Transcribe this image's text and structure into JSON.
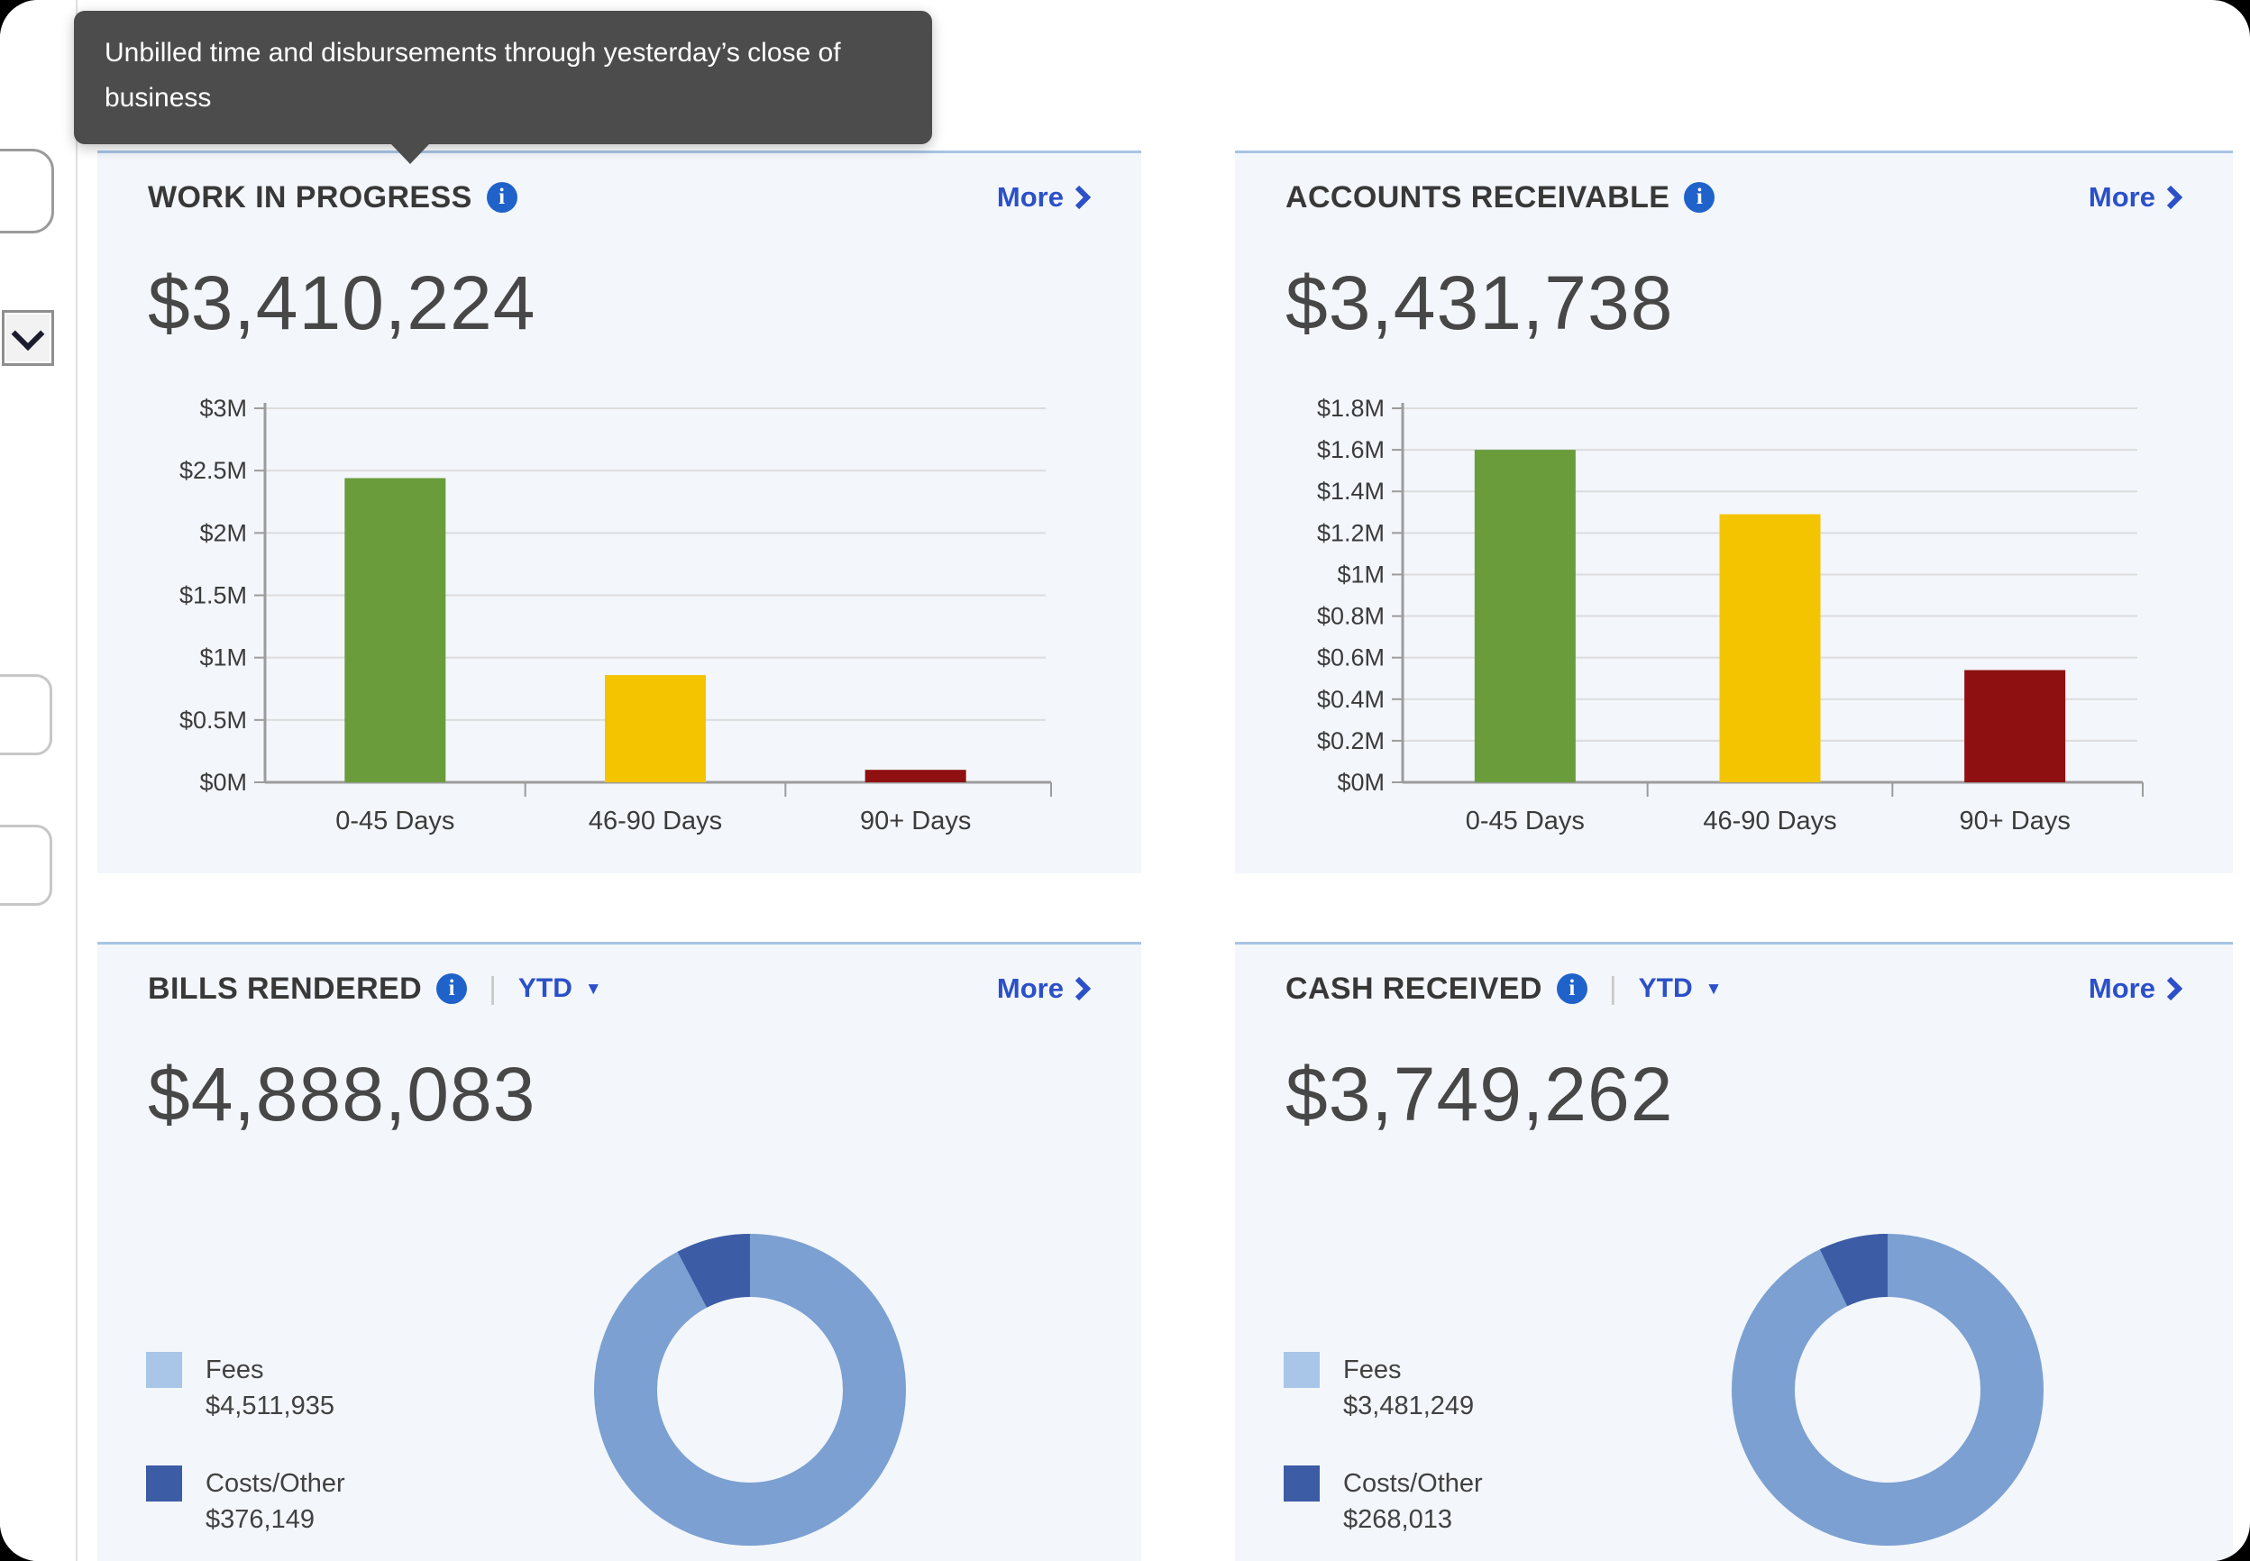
{
  "tooltip": {
    "text": "Unbilled time and disbursements through yesterday’s close of business"
  },
  "icons": {
    "info_glyph": "i",
    "period_caret_glyph": "▼",
    "more_chevron": "chevron-right",
    "sidebar_dropdown": "chevron-down"
  },
  "cards": {
    "work_in_progress": {
      "title": "WORK IN PROGRESS",
      "more_label": "More",
      "value": "$3,410,224"
    },
    "accounts_receivable": {
      "title": "ACCOUNTS RECEIVABLE",
      "more_label": "More",
      "value": "$3,431,738"
    },
    "bills_rendered": {
      "title": "BILLS RENDERED",
      "period_label": "YTD",
      "more_label": "More",
      "value": "$4,888,083"
    },
    "cash_received": {
      "title": "CASH RECEIVED",
      "period_label": "YTD",
      "more_label": "More",
      "value": "$3,749,262"
    }
  },
  "chart_data": [
    {
      "id": "work-in-progress-aging",
      "type": "bar",
      "title": "WORK IN PROGRESS",
      "categories": [
        "0-45 Days",
        "46-90 Days",
        "90+ Days"
      ],
      "values": [
        2.44,
        0.86,
        0.1
      ],
      "unit": "USD millions",
      "bar_colors": [
        "#6a9c3c",
        "#f5c400",
        "#8e1010"
      ],
      "ylim": [
        0,
        3
      ],
      "ytick_labels": [
        "$0M",
        "$0.5M",
        "$1M",
        "$1.5M",
        "$2M",
        "$2.5M",
        "$3M"
      ],
      "grid": true,
      "legend": "none"
    },
    {
      "id": "accounts-receivable-aging",
      "type": "bar",
      "title": "ACCOUNTS RECEIVABLE",
      "categories": [
        "0-45 Days",
        "46-90 Days",
        "90+ Days"
      ],
      "values": [
        1.6,
        1.29,
        0.54
      ],
      "unit": "USD millions",
      "bar_colors": [
        "#6a9c3c",
        "#f5c400",
        "#8e1010"
      ],
      "ylim": [
        0,
        1.8
      ],
      "ytick_labels": [
        "$0M",
        "$0.2M",
        "$0.4M",
        "$0.6M",
        "$0.8M",
        "$1M",
        "$1.2M",
        "$1.4M",
        "$1.6M",
        "$1.8M"
      ],
      "grid": true,
      "legend": "none"
    },
    {
      "id": "bills-rendered-split",
      "type": "donut",
      "title": "BILLS RENDERED YTD",
      "total_label": "$4,888,083",
      "legend_position": "left",
      "slices": [
        {
          "label": "Fees",
          "value": 4511935,
          "value_label": "$4,511,935",
          "color": "#7ba0d1",
          "legend_color": "#a9c6e8"
        },
        {
          "label": "Costs/Other",
          "value": 376149,
          "value_label": "$376,149",
          "color": "#3c5ca5",
          "legend_color": "#3c5ca5"
        }
      ]
    },
    {
      "id": "cash-received-split",
      "type": "donut",
      "title": "CASH RECEIVED YTD",
      "total_label": "$3,749,262",
      "legend_position": "left",
      "slices": [
        {
          "label": "Fees",
          "value": 3481249,
          "value_label": "$3,481,249",
          "color": "#7ba0d1",
          "legend_color": "#a9c6e8"
        },
        {
          "label": "Costs/Other",
          "value": 268013,
          "value_label": "$268,013",
          "color": "#3c5ca5",
          "legend_color": "#3c5ca5"
        }
      ]
    }
  ]
}
